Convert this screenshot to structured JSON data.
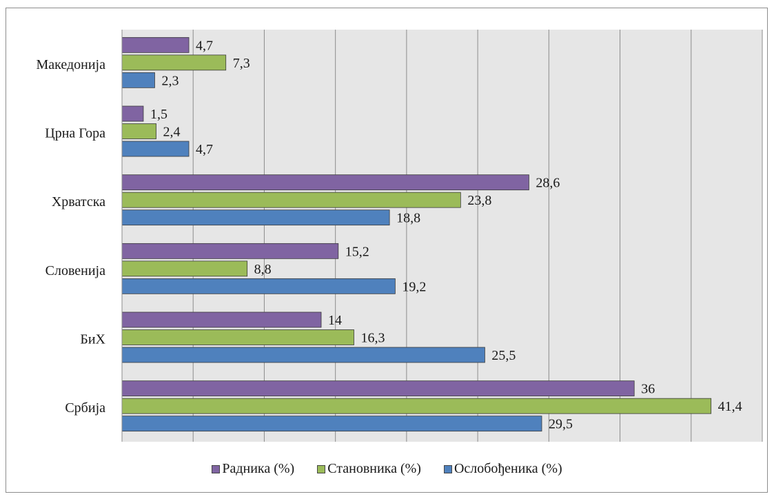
{
  "chart_data": {
    "type": "bar",
    "orientation": "horizontal",
    "categories": [
      "Македонија",
      "Црна Гора",
      "Хрватска",
      "Словенија",
      "БиХ",
      "Србија"
    ],
    "series": [
      {
        "name": "Радника (%)",
        "color": "#8064a2",
        "values": [
          4.7,
          1.5,
          28.6,
          15.2,
          14,
          36
        ],
        "labels": [
          "4,7",
          "1,5",
          "28,6",
          "15,2",
          "14",
          "36"
        ]
      },
      {
        "name": "Становника (%)",
        "color": "#9bbb59",
        "values": [
          7.3,
          2.4,
          23.8,
          8.8,
          16.3,
          41.4
        ],
        "labels": [
          "7,3",
          "2,4",
          "23,8",
          "8,8",
          "16,3",
          "41,4"
        ]
      },
      {
        "name": "Ослобођеника (%)",
        "color": "#4f81bd",
        "values": [
          2.3,
          4.7,
          18.8,
          19.2,
          25.5,
          29.5
        ],
        "labels": [
          "2,3",
          "4,7",
          "18,8",
          "19,2",
          "25,5",
          "29,5"
        ]
      }
    ],
    "xlim": [
      0,
      45
    ],
    "grid": true,
    "legend_position": "bottom",
    "plot_background": "#e6e6e6"
  },
  "legend": {
    "items": [
      {
        "label": "Радника (%)",
        "color": "#8064a2"
      },
      {
        "label": "Становника (%)",
        "color": "#9bbb59"
      },
      {
        "label": "Ослобођеника (%)",
        "color": "#4f81bd"
      }
    ]
  }
}
